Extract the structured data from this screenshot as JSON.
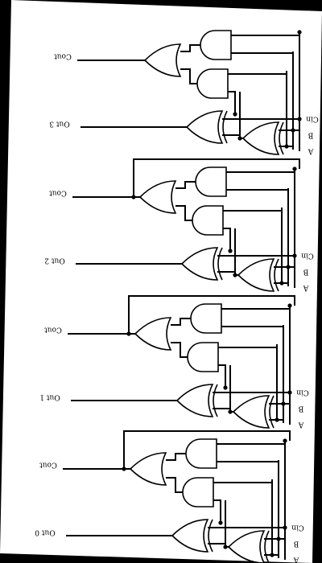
{
  "diagram": {
    "title": "",
    "stages": [
      {
        "id": "stage-3",
        "labels": {
          "a": "A",
          "b": "B",
          "cin": "Cin",
          "sum": "Out 3",
          "cout": "Cout"
        }
      },
      {
        "id": "stage-2",
        "labels": {
          "a": "A",
          "b": "B",
          "cin": "Cin",
          "sum": "Out 2",
          "cout": "Cout"
        }
      },
      {
        "id": "stage-1",
        "labels": {
          "a": "A",
          "b": "B",
          "cin": "Cin",
          "sum": "Out 1",
          "cout": "Cout"
        }
      },
      {
        "id": "stage-0",
        "labels": {
          "a": "A",
          "b": "B",
          "cin": "Cin",
          "sum": "Out 0",
          "cout": "Cout"
        }
      }
    ],
    "orientation": "rotated 180 degrees",
    "colors": {
      "background": "#000000",
      "paper": "#ffffff",
      "ink": "#000000"
    }
  }
}
